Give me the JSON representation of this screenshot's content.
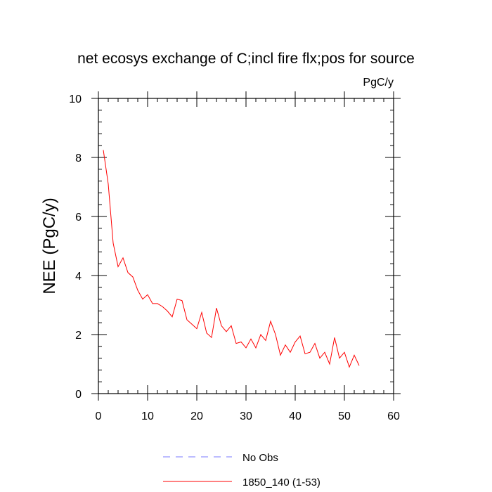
{
  "chart_data": {
    "type": "line",
    "title": "net ecosys exchange of C;incl fire flx;pos for source",
    "units_label": "PgC/y",
    "ylabel": "NEE  (PgC/y)",
    "xlabel": "",
    "xlim": [
      0,
      60
    ],
    "ylim": [
      0,
      10
    ],
    "x_ticks": [
      0,
      10,
      20,
      30,
      40,
      50,
      60
    ],
    "y_ticks": [
      0,
      2,
      4,
      6,
      8,
      10
    ],
    "grid": false,
    "legend_position": "bottom",
    "series": [
      {
        "name": "1850_140 (1-53)",
        "color": "#ff0000",
        "style": "solid",
        "x": [
          1,
          2,
          3,
          4,
          5,
          6,
          7,
          8,
          9,
          10,
          11,
          12,
          13,
          14,
          15,
          16,
          17,
          18,
          19,
          20,
          21,
          22,
          23,
          24,
          25,
          26,
          27,
          28,
          29,
          30,
          31,
          32,
          33,
          34,
          35,
          36,
          37,
          38,
          39,
          40,
          41,
          42,
          43,
          44,
          45,
          46,
          47,
          48,
          49,
          50,
          51,
          52,
          53
        ],
        "values": [
          8.25,
          7.1,
          5.1,
          4.3,
          4.6,
          4.1,
          3.95,
          3.5,
          3.2,
          3.35,
          3.05,
          3.05,
          2.95,
          2.8,
          2.6,
          3.2,
          3.15,
          2.5,
          2.35,
          2.2,
          2.75,
          2.05,
          1.9,
          2.9,
          2.3,
          2.1,
          2.3,
          1.7,
          1.75,
          1.55,
          1.85,
          1.55,
          2.0,
          1.8,
          2.45,
          2.0,
          1.3,
          1.65,
          1.4,
          1.75,
          1.95,
          1.35,
          1.4,
          1.7,
          1.2,
          1.4,
          1.0,
          1.9,
          1.2,
          1.4,
          0.9,
          1.3,
          0.95
        ]
      },
      {
        "name": "No Obs",
        "color": "#7a7aff",
        "style": "dashed",
        "x": [],
        "values": []
      }
    ]
  }
}
